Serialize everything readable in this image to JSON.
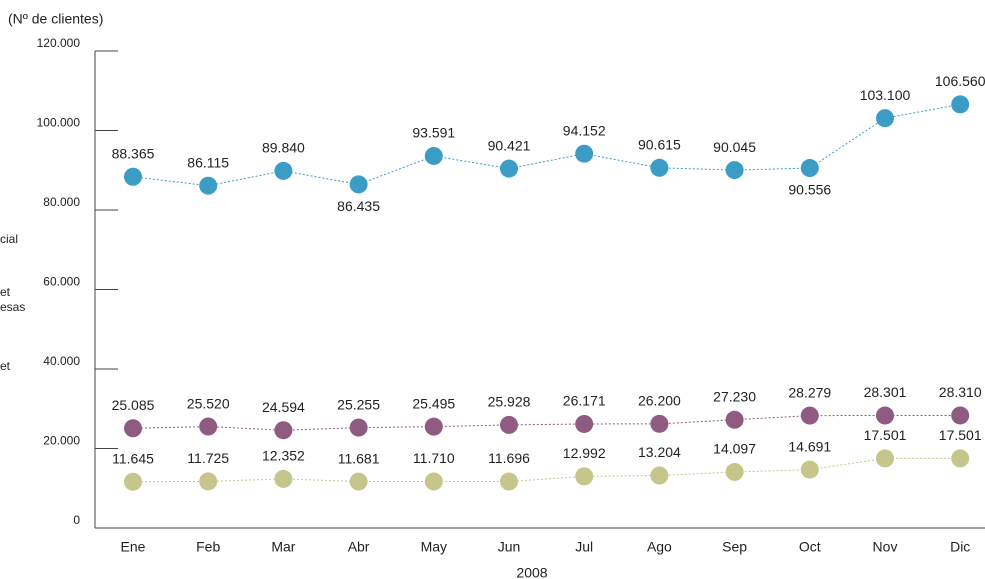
{
  "chart_data": {
    "type": "line",
    "y_label": "(Nº de clientes)",
    "x_label": "2008",
    "categories": [
      "Ene",
      "Feb",
      "Mar",
      "Abr",
      "May",
      "Jun",
      "Jul",
      "Ago",
      "Sep",
      "Oct",
      "Nov",
      "Dic"
    ],
    "ylim": [
      0,
      120000
    ],
    "yticks": [
      0,
      {
        "value": 20000,
        "label": "20.000"
      },
      {
        "value": 40000,
        "label": "40.000"
      },
      {
        "value": 60000,
        "label": "60.000"
      },
      {
        "value": 80000,
        "label": "80.000"
      },
      {
        "value": 100000,
        "label": "100.000"
      },
      {
        "value": 120000,
        "label": "120.000"
      }
    ],
    "series": [
      {
        "name": "cial",
        "color": "#3b9dc5",
        "values": [
          88365,
          86115,
          89840,
          86435,
          93591,
          90421,
          94152,
          90615,
          90045,
          90556,
          103100,
          106560
        ],
        "value_labels": [
          "88.365",
          "86.115",
          "89.840",
          "86.435",
          "93.591",
          "90.421",
          "94.152",
          "90.615",
          "90.045",
          "90.556",
          "103.100",
          "106.560"
        ]
      },
      {
        "name": "et esas",
        "color": "#8f5b80",
        "values": [
          25085,
          25520,
          24594,
          25255,
          25495,
          25928,
          26171,
          26200,
          27230,
          28279,
          28301,
          28310
        ],
        "value_labels": [
          "25.085",
          "25.520",
          "24.594",
          "25.255",
          "25.495",
          "25.928",
          "26.171",
          "26.200",
          "27.230",
          "28.279",
          "28.301",
          "28.310"
        ]
      },
      {
        "name": "et",
        "color": "#c5c58c",
        "values": [
          11645,
          11725,
          12352,
          11681,
          11710,
          11696,
          12992,
          13204,
          14097,
          14691,
          17501,
          17501
        ],
        "value_labels": [
          "11.645",
          "11.725",
          "12.352",
          "11.681",
          "11.710",
          "11.696",
          "12.992",
          "13.204",
          "14.097",
          "14.691",
          "17.501",
          "17.501"
        ]
      }
    ]
  }
}
